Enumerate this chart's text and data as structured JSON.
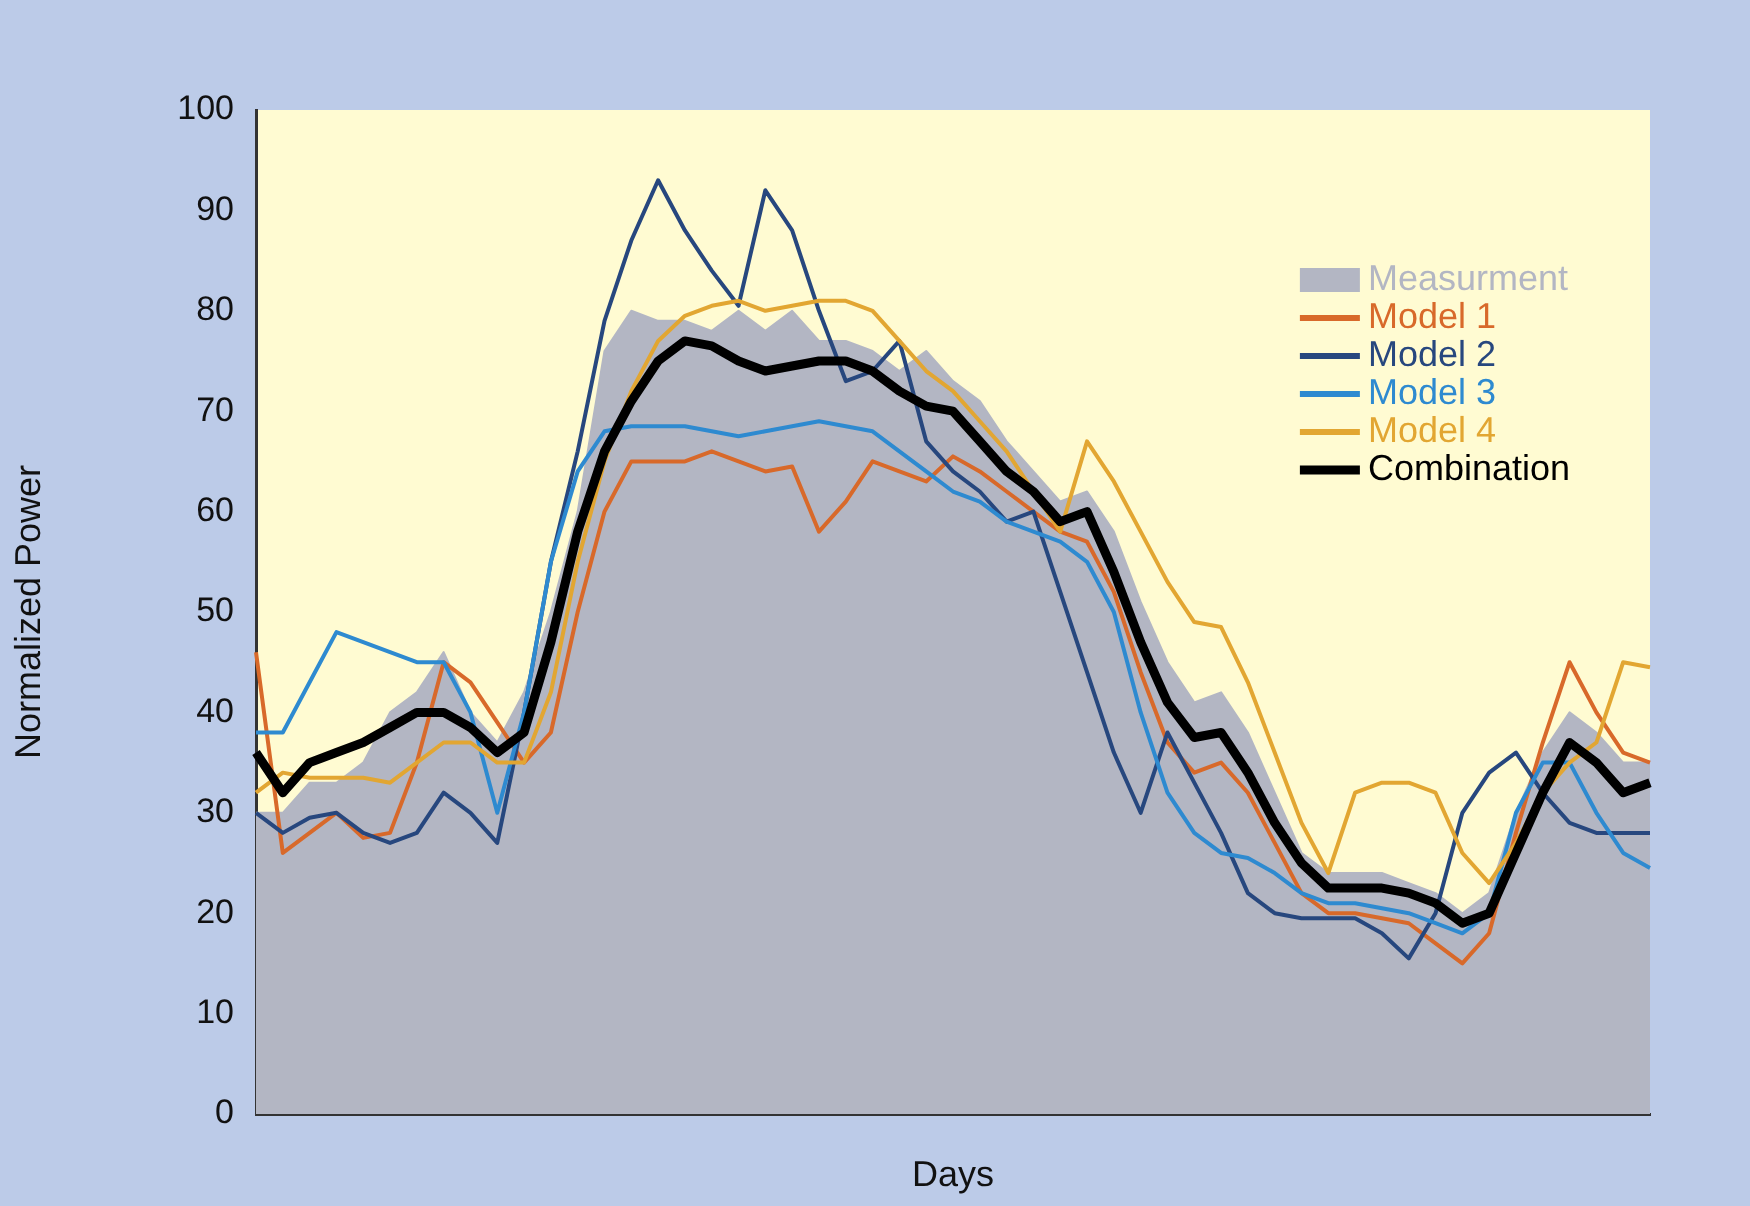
{
  "chart_data": {
    "type": "line",
    "xlabel": "Days",
    "ylabel": "Normalized Power",
    "categories": [
      null,
      null,
      null,
      null,
      null,
      null,
      null,
      null,
      null,
      null,
      null,
      null,
      null,
      null,
      null,
      null,
      null,
      null,
      null,
      null,
      null,
      null,
      null,
      null,
      null,
      null,
      null,
      null,
      null,
      null,
      null,
      null,
      null,
      null,
      null,
      null,
      null,
      null,
      null,
      null,
      null,
      null,
      null,
      null,
      null,
      null,
      null,
      null,
      null,
      null,
      null,
      null,
      null
    ],
    "series": [
      {
        "name": "Measurment",
        "type": "area",
        "color": "#b3b6c3",
        "values": [
          30,
          30,
          33,
          33,
          35,
          40,
          42,
          46,
          40,
          37,
          42,
          50,
          60,
          76,
          80,
          79,
          79,
          78,
          80,
          78,
          80,
          77,
          77,
          76,
          74,
          76,
          73,
          71,
          67,
          64,
          61,
          62,
          58,
          51,
          45,
          41,
          42,
          38,
          32,
          26,
          24,
          24,
          24,
          23,
          22,
          20,
          22,
          30,
          36,
          40,
          38,
          35,
          35
        ]
      },
      {
        "name": "Model 1",
        "color": "#d8692a",
        "values": [
          46,
          26,
          28,
          30,
          27.5,
          28,
          35,
          45,
          43,
          39,
          35,
          38,
          50,
          60,
          65,
          65,
          65,
          66,
          65,
          64,
          64.5,
          58,
          61,
          65,
          64,
          63,
          65.5,
          64,
          62,
          60,
          58,
          57,
          52,
          44,
          37,
          34,
          35,
          32,
          27,
          22,
          20,
          20,
          19.5,
          19,
          17,
          15,
          18,
          28,
          37,
          45,
          40,
          36,
          35
        ]
      },
      {
        "name": "Model 2",
        "color": "#27477e",
        "values": [
          30,
          28,
          29.5,
          30,
          28,
          27,
          28,
          32,
          30,
          27,
          40,
          55,
          66,
          79,
          87,
          93,
          88,
          84,
          80.5,
          92,
          88,
          80,
          73,
          74,
          77,
          67,
          64,
          62,
          59,
          60,
          52,
          44,
          36,
          30,
          38,
          33,
          28,
          22,
          20,
          19.5,
          19.5,
          19.5,
          18,
          15.5,
          20,
          30,
          34,
          36,
          32,
          29,
          28,
          28,
          28
        ]
      },
      {
        "name": "Model 3",
        "color": "#2e8ad0",
        "values": [
          38,
          38,
          43,
          48,
          47,
          46,
          45,
          45,
          40,
          30,
          40,
          55,
          64,
          68,
          68.5,
          68.5,
          68.5,
          68,
          67.5,
          68,
          68.5,
          69,
          68.5,
          68,
          66,
          64,
          62,
          61,
          59,
          58,
          57,
          55,
          50,
          40,
          32,
          28,
          26,
          25.5,
          24,
          22,
          21,
          21,
          20.5,
          20,
          19,
          18,
          20,
          30,
          35,
          35,
          30,
          26,
          24.5
        ]
      },
      {
        "name": "Model 4",
        "color": "#e2a632",
        "values": [
          32,
          34,
          33.5,
          33.5,
          33.5,
          33,
          35,
          37,
          37,
          35,
          35,
          42,
          55,
          65,
          72,
          77,
          79.5,
          80.5,
          81,
          80,
          80.5,
          81,
          81,
          80,
          77,
          74,
          72,
          69,
          66,
          62,
          58,
          67,
          63,
          58,
          53,
          49,
          48.5,
          43,
          36,
          29,
          24,
          32,
          33,
          33,
          32,
          26,
          23,
          27,
          32,
          35,
          37,
          45,
          44.5
        ]
      },
      {
        "name": "Combination",
        "color": "#000000",
        "values": [
          36,
          32,
          35,
          36,
          37,
          38.5,
          40,
          40,
          38.5,
          36,
          38,
          47,
          58,
          66,
          71,
          75,
          77,
          76.5,
          75,
          74,
          74.5,
          75,
          75,
          74,
          72,
          70.5,
          70,
          67,
          64,
          62,
          59,
          60,
          54,
          47,
          41,
          37.5,
          38,
          34,
          29,
          25,
          22.5,
          22.5,
          22.5,
          22,
          21,
          19,
          20,
          26,
          32,
          37,
          35,
          32,
          33
        ]
      }
    ],
    "ylim": [
      0,
      100
    ],
    "yticks": [
      0,
      10,
      20,
      30,
      40,
      50,
      60,
      70,
      80,
      90,
      100
    ],
    "legend": "top right",
    "marker": "none"
  }
}
